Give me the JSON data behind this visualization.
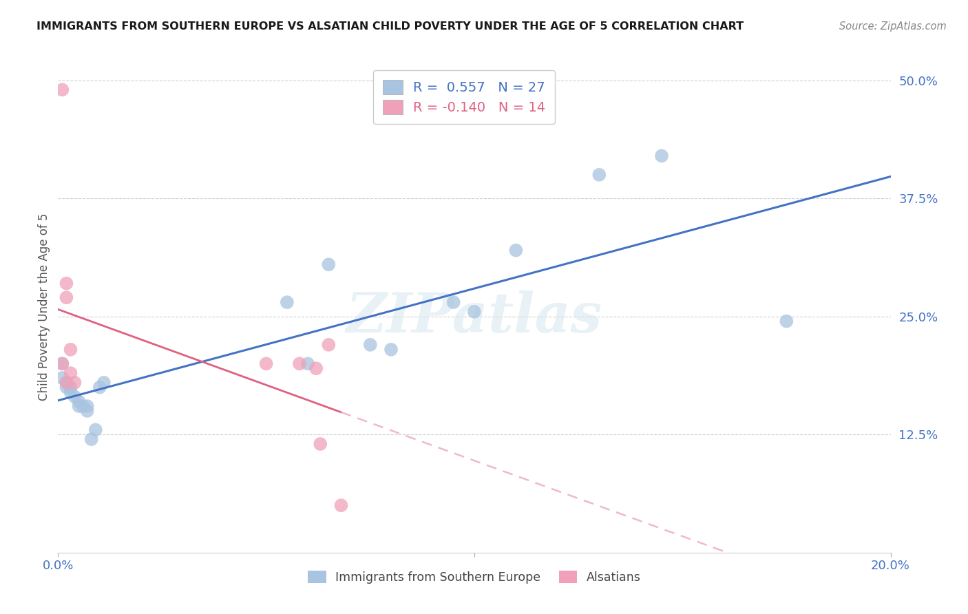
{
  "title": "IMMIGRANTS FROM SOUTHERN EUROPE VS ALSATIAN CHILD POVERTY UNDER THE AGE OF 5 CORRELATION CHART",
  "source": "Source: ZipAtlas.com",
  "ylabel": "Child Poverty Under the Age of 5",
  "xlim": [
    0.0,
    0.2
  ],
  "ylim": [
    0.0,
    0.52
  ],
  "yticks": [
    0.125,
    0.25,
    0.375,
    0.5
  ],
  "ytick_labels": [
    "12.5%",
    "25.0%",
    "37.5%",
    "50.0%"
  ],
  "xticks": [
    0.0,
    0.2
  ],
  "xtick_labels": [
    "0.0%",
    "20.0%"
  ],
  "blue_x": [
    0.001,
    0.001,
    0.002,
    0.002,
    0.003,
    0.003,
    0.004,
    0.005,
    0.005,
    0.006,
    0.007,
    0.007,
    0.008,
    0.009,
    0.01,
    0.011,
    0.055,
    0.06,
    0.065,
    0.075,
    0.08,
    0.095,
    0.1,
    0.11,
    0.13,
    0.145,
    0.175
  ],
  "blue_y": [
    0.2,
    0.185,
    0.18,
    0.175,
    0.17,
    0.175,
    0.165,
    0.155,
    0.16,
    0.155,
    0.15,
    0.155,
    0.12,
    0.13,
    0.175,
    0.18,
    0.265,
    0.2,
    0.305,
    0.22,
    0.215,
    0.265,
    0.255,
    0.32,
    0.4,
    0.42,
    0.245
  ],
  "pink_x": [
    0.001,
    0.001,
    0.002,
    0.002,
    0.002,
    0.003,
    0.003,
    0.004,
    0.05,
    0.058,
    0.062,
    0.063,
    0.065,
    0.068
  ],
  "pink_y": [
    0.49,
    0.2,
    0.18,
    0.27,
    0.285,
    0.215,
    0.19,
    0.18,
    0.2,
    0.2,
    0.195,
    0.115,
    0.22,
    0.05
  ],
  "blue_color": "#a8c4e0",
  "pink_color": "#f0a0b8",
  "blue_line_color": "#4472c4",
  "pink_line_color": "#e06080",
  "pink_dash_color": "#f0b8c8",
  "blue_r": 0.557,
  "blue_n": 27,
  "pink_r": -0.14,
  "pink_n": 14,
  "watermark": "ZIPatlas",
  "background": "#ffffff",
  "grid_color": "#d0d0d0"
}
